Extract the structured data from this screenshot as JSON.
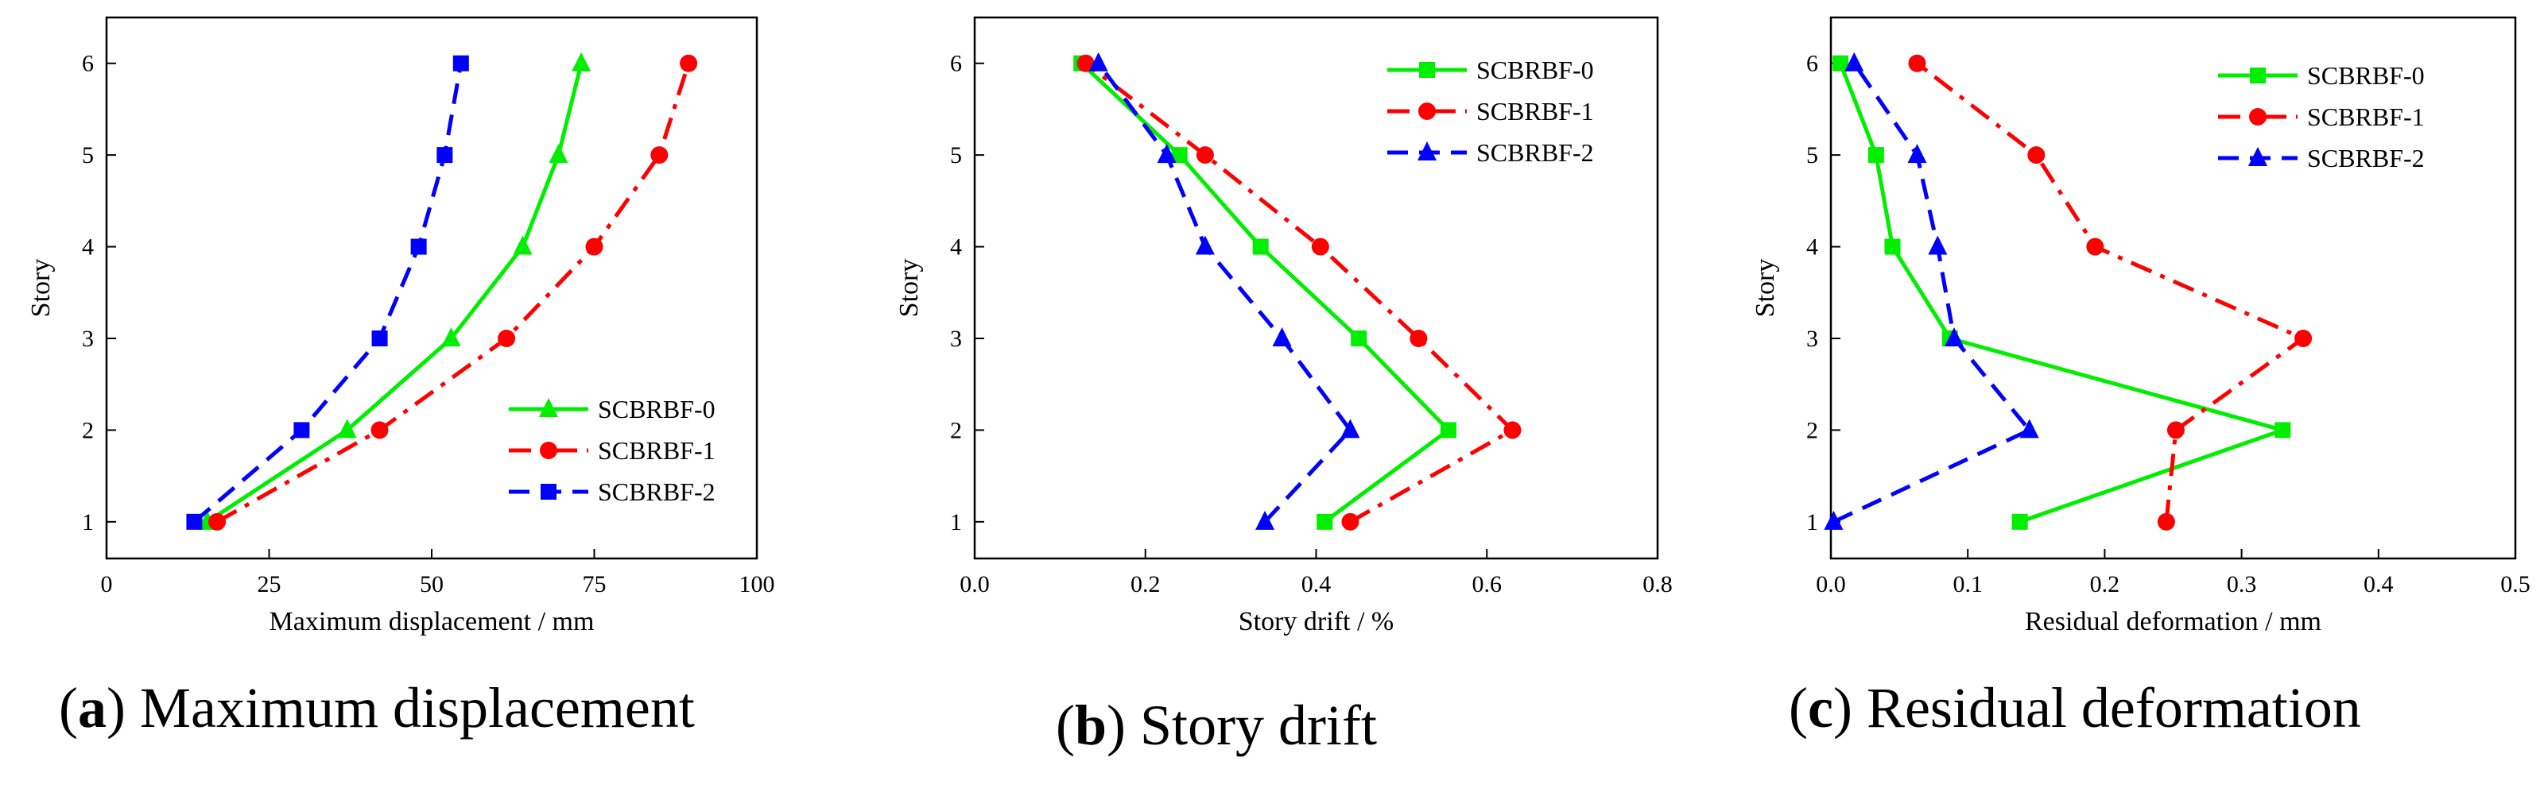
{
  "chart_data": [
    {
      "type": "line",
      "xlabel": "Maximum displacement / mm",
      "ylabel": "Story",
      "xlim": [
        0,
        100
      ],
      "ylim": [
        0.6,
        6.5
      ],
      "xticks": [
        0,
        25,
        50,
        75,
        100
      ],
      "yticks": [
        1,
        2,
        3,
        4,
        5,
        6
      ],
      "legend_position": "bottom-right",
      "caption": {
        "letter": "a",
        "text": "Maximum displacement"
      },
      "series": [
        {
          "name": "SCBRBF-0",
          "color": "#00ee00",
          "dash": "solid",
          "marker": "triangle",
          "points": [
            [
              15.5,
              1
            ],
            [
              37,
              2
            ],
            [
              53,
              3
            ],
            [
              64,
              4
            ],
            [
              69.5,
              5
            ],
            [
              73,
              6
            ]
          ]
        },
        {
          "name": "SCBRBF-1",
          "color": "#ff0000",
          "dash": "dashdot",
          "marker": "circle",
          "points": [
            [
              17,
              1
            ],
            [
              42,
              2
            ],
            [
              61.5,
              3
            ],
            [
              75,
              4
            ],
            [
              85,
              5
            ],
            [
              89.5,
              6
            ]
          ]
        },
        {
          "name": "SCBRBF-2",
          "color": "#0000ff",
          "dash": "dash",
          "marker": "square",
          "points": [
            [
              13.5,
              1
            ],
            [
              30,
              2
            ],
            [
              42,
              3
            ],
            [
              48,
              4
            ],
            [
              52,
              5
            ],
            [
              54.5,
              6
            ]
          ]
        }
      ]
    },
    {
      "type": "line",
      "xlabel": "Story drift / %",
      "ylabel": "Story",
      "xlim": [
        0,
        0.8
      ],
      "ylim": [
        0.6,
        6.5
      ],
      "xticks": [
        "0.0",
        "0.2",
        "0.4",
        "0.6",
        "0.8"
      ],
      "yticks": [
        1,
        2,
        3,
        4,
        5,
        6
      ],
      "legend_position": "top-right",
      "caption": {
        "letter": "b",
        "text": "Story drift"
      },
      "series": [
        {
          "name": "SCBRBF-0",
          "color": "#00ee00",
          "dash": "solid",
          "marker": "square",
          "points": [
            [
              0.41,
              1
            ],
            [
              0.555,
              2
            ],
            [
              0.45,
              3
            ],
            [
              0.335,
              4
            ],
            [
              0.24,
              5
            ],
            [
              0.125,
              6
            ]
          ]
        },
        {
          "name": "SCBRBF-1",
          "color": "#ff0000",
          "dash": "dashdot",
          "marker": "circle",
          "points": [
            [
              0.44,
              1
            ],
            [
              0.63,
              2
            ],
            [
              0.52,
              3
            ],
            [
              0.405,
              4
            ],
            [
              0.27,
              5
            ],
            [
              0.13,
              6
            ]
          ]
        },
        {
          "name": "SCBRBF-2",
          "color": "#0000ff",
          "dash": "dash",
          "marker": "triangle",
          "points": [
            [
              0.34,
              1
            ],
            [
              0.44,
              2
            ],
            [
              0.36,
              3
            ],
            [
              0.27,
              4
            ],
            [
              0.225,
              5
            ],
            [
              0.145,
              6
            ]
          ]
        }
      ]
    },
    {
      "type": "line",
      "xlabel": "Residual deformation / mm",
      "ylabel": "Story",
      "xlim": [
        0,
        0.5
      ],
      "ylim": [
        0.6,
        6.5
      ],
      "xticks": [
        "0.0",
        "0.1",
        "0.2",
        "0.3",
        "0.4",
        "0.5"
      ],
      "yticks": [
        1,
        2,
        3,
        4,
        5,
        6
      ],
      "legend_position": "top-right",
      "caption": {
        "letter": "c",
        "text": "Residual deformation"
      },
      "series": [
        {
          "name": "SCBRBF-0",
          "color": "#00ee00",
          "dash": "solid",
          "marker": "square",
          "points": [
            [
              0.138,
              1
            ],
            [
              0.33,
              2
            ],
            [
              0.087,
              3
            ],
            [
              0.045,
              4
            ],
            [
              0.033,
              5
            ],
            [
              0.007,
              6
            ]
          ]
        },
        {
          "name": "SCBRBF-1",
          "color": "#ff0000",
          "dash": "dashdot",
          "marker": "circle",
          "points": [
            [
              0.245,
              1
            ],
            [
              0.252,
              2
            ],
            [
              0.345,
              3
            ],
            [
              0.193,
              4
            ],
            [
              0.15,
              5
            ],
            [
              0.063,
              6
            ]
          ]
        },
        {
          "name": "SCBRBF-2",
          "color": "#0000ff",
          "dash": "dash",
          "marker": "triangle",
          "points": [
            [
              0.002,
              1
            ],
            [
              0.145,
              2
            ],
            [
              0.09,
              3
            ],
            [
              0.078,
              4
            ],
            [
              0.063,
              5
            ],
            [
              0.017,
              6
            ]
          ]
        }
      ]
    }
  ]
}
